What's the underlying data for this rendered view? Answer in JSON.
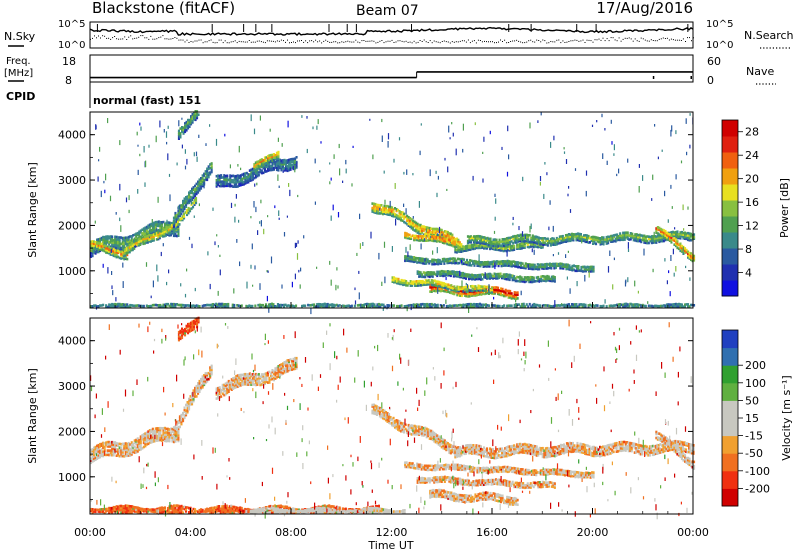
{
  "header": {
    "station": "Blackstone (fitACF)",
    "beam": "Beam 07",
    "date": "17/Aug/2016"
  },
  "top_panel": {
    "left_label": "N.Sky",
    "right_label": "N.Search",
    "left_ticks": [
      "10^5",
      "10^0"
    ],
    "right_ticks": [
      "10^5",
      "10^0"
    ]
  },
  "freq_panel": {
    "left_label_1": "Freq.",
    "left_label_2": "[MHz]",
    "right_label": "Nave",
    "left_ticks": [
      "18",
      "8"
    ],
    "right_ticks": [
      "60",
      "0"
    ],
    "freq_mhz": [
      10.0,
      11.0
    ],
    "freq_change_time": "13:00"
  },
  "cpid_panel": {
    "label": "CPID",
    "mode": "normal (fast) 151"
  },
  "colors": {
    "power_scale": [
      "#1010e0",
      "#2030b0",
      "#2a5aa0",
      "#3a8a8a",
      "#50a050",
      "#88c040",
      "#e8e020",
      "#f0a010",
      "#f06010",
      "#e02010",
      "#d00000"
    ],
    "velocity_scale": [
      "#d00000",
      "#f03010",
      "#f07020",
      "#f0a030",
      "#c8c8c0",
      "#c8c8c0",
      "#60b040",
      "#30a030",
      "#3070b0",
      "#2040c0"
    ],
    "ground_scatter": "#c8c8c0"
  },
  "chart_data": [
    {
      "type": "heatmap",
      "name": "power",
      "ylabel": "Slant Range [km]",
      "ylim": [
        180,
        4500
      ],
      "x_range_hours": [
        0,
        24
      ],
      "y_ticks": [
        1000,
        2000,
        3000,
        4000
      ],
      "colorbar": {
        "label": "Power [dB]",
        "ticks": [
          4,
          8,
          12,
          16,
          20,
          24,
          28
        ],
        "range": [
          0,
          30
        ]
      },
      "bands": [
        {
          "start": 0.0,
          "end": 3.5,
          "rng0": 1450,
          "rng1": 2000,
          "width": 320,
          "value": 12
        },
        {
          "start": 0.0,
          "end": 1.5,
          "rng0": 1550,
          "rng1": 1350,
          "width": 160,
          "value": 19
        },
        {
          "start": 1.3,
          "end": 3.5,
          "rng0": 1400,
          "rng1": 2050,
          "width": 170,
          "value": 17
        },
        {
          "start": 3.3,
          "end": 4.8,
          "rng0": 2050,
          "rng1": 3350,
          "width": 260,
          "value": 11
        },
        {
          "start": 3.4,
          "end": 4.2,
          "rng0": 1950,
          "rng1": 2600,
          "width": 140,
          "value": 17
        },
        {
          "start": 5.0,
          "end": 8.2,
          "rng0": 2900,
          "rng1": 3450,
          "width": 280,
          "value": 9
        },
        {
          "start": 6.5,
          "end": 7.5,
          "rng0": 3250,
          "rng1": 3600,
          "width": 160,
          "value": 18
        },
        {
          "start": 3.5,
          "end": 4.3,
          "rng0": 4050,
          "rng1": 4450,
          "width": 220,
          "value": 12
        },
        {
          "start": 11.2,
          "end": 14.8,
          "rng0": 2450,
          "rng1": 1550,
          "width": 240,
          "value": 19
        },
        {
          "start": 12.5,
          "end": 14.5,
          "rng0": 1800,
          "rng1": 1600,
          "width": 120,
          "value": 22
        },
        {
          "start": 14.5,
          "end": 18.0,
          "rng0": 1500,
          "rng1": 1550,
          "width": 150,
          "value": 15
        },
        {
          "start": 15.0,
          "end": 24.0,
          "rng0": 1650,
          "rng1": 1750,
          "width": 190,
          "value": 13
        },
        {
          "start": 22.5,
          "end": 24.0,
          "rng0": 1900,
          "rng1": 1300,
          "width": 180,
          "value": 20
        },
        {
          "start": 12.5,
          "end": 20.0,
          "rng0": 1250,
          "rng1": 1050,
          "width": 90,
          "value": 12
        },
        {
          "start": 13.0,
          "end": 18.5,
          "rng0": 950,
          "rng1": 800,
          "width": 100,
          "value": 12
        },
        {
          "start": 13.5,
          "end": 17.0,
          "rng0": 600,
          "rng1": 500,
          "width": 180,
          "value": 26
        },
        {
          "start": 12.0,
          "end": 16.0,
          "rng0": 800,
          "rng1": 550,
          "width": 150,
          "value": 18
        },
        {
          "start": 0.0,
          "end": 24.0,
          "rng0": 200,
          "rng1": 200,
          "width": 80,
          "value": 10
        }
      ]
    },
    {
      "type": "heatmap",
      "name": "velocity",
      "xlabel": "Time UT",
      "ylabel": "Slant Range [km]",
      "ylim": [
        180,
        4500
      ],
      "x_range_hours": [
        0,
        24
      ],
      "x_ticks": [
        "00:00",
        "04:00",
        "08:00",
        "12:00",
        "16:00",
        "20:00",
        "00:00"
      ],
      "y_ticks": [
        1000,
        2000,
        3000,
        4000
      ],
      "colorbar": {
        "label": "Velocity [m s⁻¹]",
        "ticks": [
          -200,
          -100,
          -50,
          -15,
          15,
          50,
          100,
          200
        ],
        "tick_labels": [
          "-200",
          "-100",
          "-50",
          "-15",
          "15",
          "50",
          "100",
          "200"
        ]
      },
      "bands": [
        {
          "start": 0.0,
          "end": 3.5,
          "rng0": 1450,
          "rng1": 2000,
          "width": 320,
          "value": 0
        },
        {
          "start": 3.3,
          "end": 4.8,
          "rng0": 2050,
          "rng1": 3350,
          "width": 260,
          "value": 0
        },
        {
          "start": 5.0,
          "end": 8.2,
          "rng0": 2900,
          "rng1": 3450,
          "width": 280,
          "value": 0
        },
        {
          "start": 3.5,
          "end": 4.3,
          "rng0": 4050,
          "rng1": 4450,
          "width": 220,
          "value": -60
        },
        {
          "start": 11.2,
          "end": 14.8,
          "rng0": 2450,
          "rng1": 1550,
          "width": 240,
          "value": 0
        },
        {
          "start": 14.5,
          "end": 24.0,
          "rng0": 1550,
          "rng1": 1650,
          "width": 220,
          "value": 0
        },
        {
          "start": 22.5,
          "end": 24.0,
          "rng0": 1900,
          "rng1": 1300,
          "width": 180,
          "value": 0
        },
        {
          "start": 12.5,
          "end": 20.0,
          "rng0": 1250,
          "rng1": 1050,
          "width": 90,
          "value": 0
        },
        {
          "start": 13.0,
          "end": 18.5,
          "rng0": 950,
          "rng1": 800,
          "width": 100,
          "value": 0
        },
        {
          "start": 13.5,
          "end": 17.0,
          "rng0": 600,
          "rng1": 500,
          "width": 180,
          "value": 0
        },
        {
          "start": 0.0,
          "end": 11.5,
          "rng0": 250,
          "rng1": 250,
          "width": 170,
          "value": -40
        },
        {
          "start": 6.0,
          "end": 12.5,
          "rng0": 230,
          "rng1": 230,
          "width": 140,
          "value": 40
        }
      ]
    }
  ]
}
